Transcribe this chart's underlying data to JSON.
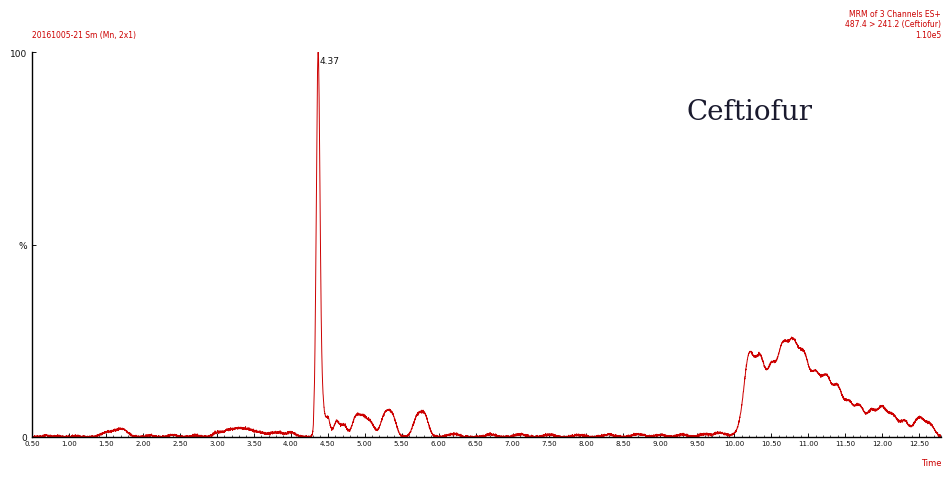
{
  "title_left": "20161005-21 Sm (Mn, 2x1)",
  "title_right_line1": "MRM of 3 Channels ES+",
  "title_right_line2": "487.4 > 241.2 (Ceftiofur)",
  "title_right_line3": "1.10e5",
  "compound_name": "Ceftiofur",
  "xlabel": "Time",
  "peak_label": "4.37",
  "xmin": 0.5,
  "xmax": 12.8,
  "ymin": 0,
  "ymax": 100,
  "line_color": "#CC0000",
  "text_color_red": "#CC0000",
  "text_color_dark": "#1a1a2e",
  "bg_color": "#FFFFFF",
  "axis_color": "#000000"
}
